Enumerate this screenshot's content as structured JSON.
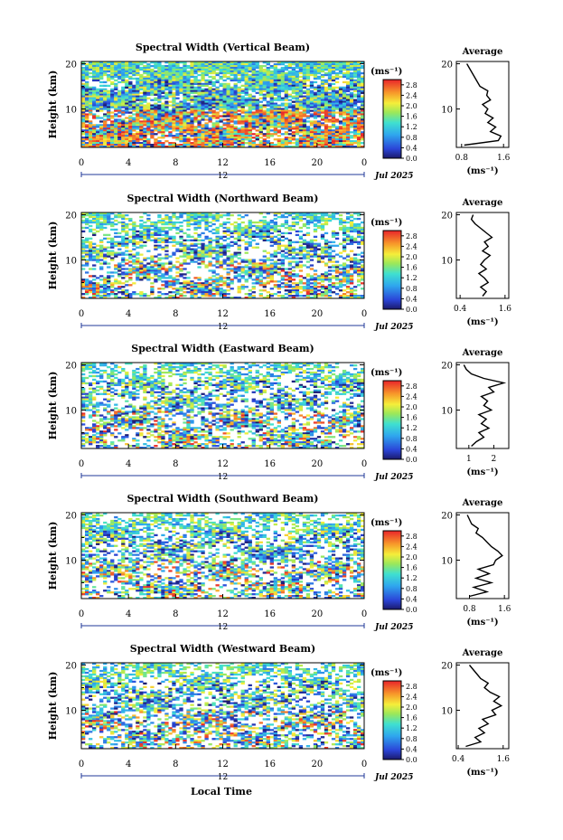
{
  "figure": {
    "xlabel": "Local Time",
    "date_label": "Jul 2025",
    "colorbar_unit": "(ms⁻¹)",
    "average_title": "Average",
    "average_unit": "(ms⁻¹)"
  },
  "chart_data": [
    {
      "type": "heatmap",
      "title": "Spectral Width (Vertical Beam)",
      "ylabel": "Height (km)",
      "xlim": [
        0,
        24
      ],
      "ylim": [
        1.5,
        20.5
      ],
      "x_ticks": [
        "0",
        "4",
        "8",
        "12",
        "16",
        "20",
        "0"
      ],
      "x_sub_label": "12",
      "y_ticks": [
        "20",
        "10"
      ],
      "colorbar": {
        "min": 0.0,
        "max": 3.0,
        "ticks": [
          "2.8",
          "2.4",
          "2.0",
          "1.6",
          "1.2",
          "0.8",
          "0.4",
          "0.0"
        ]
      },
      "profile": {
        "title": "Average",
        "xlabel": "(ms⁻¹)",
        "xlim": [
          0.7,
          1.7
        ],
        "x_ticks": [
          "0.8",
          "1.6"
        ],
        "y_ticks": [
          "20",
          "10"
        ],
        "height": [
          2,
          3,
          4,
          5,
          6,
          7,
          8,
          9,
          10,
          11,
          12,
          13,
          14,
          15,
          16,
          17,
          18,
          19,
          20
        ],
        "width": [
          0.85,
          1.5,
          1.55,
          1.35,
          1.45,
          1.3,
          1.4,
          1.25,
          1.3,
          1.2,
          1.35,
          1.28,
          1.3,
          1.15,
          1.1,
          1.05,
          1.0,
          0.95,
          0.9
        ]
      }
    },
    {
      "type": "heatmap",
      "title": "Spectral Width (Northward Beam)",
      "ylabel": "Height (km)",
      "xlim": [
        0,
        24
      ],
      "ylim": [
        1.5,
        20.5
      ],
      "x_ticks": [
        "0",
        "4",
        "8",
        "12",
        "16",
        "20",
        "0"
      ],
      "x_sub_label": "12",
      "y_ticks": [
        "20",
        "10"
      ],
      "colorbar": {
        "min": 0.0,
        "max": 3.0,
        "ticks": [
          "2.8",
          "2.4",
          "2.0",
          "1.6",
          "1.2",
          "0.8",
          "0.4",
          "0.0"
        ]
      },
      "profile": {
        "title": "Average",
        "xlabel": "(ms⁻¹)",
        "xlim": [
          0.3,
          1.7
        ],
        "x_ticks": [
          "0.4",
          "1.6"
        ],
        "y_ticks": [
          "20",
          "10"
        ],
        "height": [
          2,
          3,
          4,
          5,
          6,
          7,
          8,
          9,
          10,
          11,
          12,
          13,
          14,
          15,
          16,
          17,
          18,
          19,
          20
        ],
        "width": [
          1.0,
          1.1,
          0.95,
          1.15,
          1.05,
          0.9,
          1.1,
          0.95,
          1.05,
          1.2,
          1.0,
          1.15,
          1.05,
          1.25,
          1.1,
          0.95,
          0.8,
          0.7,
          0.75
        ]
      }
    },
    {
      "type": "heatmap",
      "title": "Spectral Width (Eastward Beam)",
      "ylabel": "Height (km)",
      "xlim": [
        0,
        24
      ],
      "ylim": [
        1.5,
        20.5
      ],
      "x_ticks": [
        "0",
        "4",
        "8",
        "12",
        "16",
        "20",
        "0"
      ],
      "x_sub_label": "12",
      "y_ticks": [
        "20",
        "10"
      ],
      "colorbar": {
        "min": 0.0,
        "max": 3.0,
        "ticks": [
          "2.8",
          "2.4",
          "2.0",
          "1.6",
          "1.2",
          "0.8",
          "0.4",
          "0.0"
        ]
      },
      "profile": {
        "title": "Average",
        "xlabel": "(ms⁻¹)",
        "xlim": [
          0.5,
          2.6
        ],
        "x_ticks": [
          "1",
          "2"
        ],
        "y_ticks": [
          "20",
          "10"
        ],
        "height": [
          2,
          3,
          4,
          5,
          6,
          7,
          8,
          9,
          10,
          11,
          12,
          13,
          14,
          15,
          16,
          17,
          18,
          19,
          20
        ],
        "width": [
          1.1,
          1.3,
          1.6,
          1.4,
          1.8,
          1.5,
          1.7,
          1.4,
          1.9,
          1.6,
          1.75,
          1.5,
          2.0,
          1.8,
          2.4,
          1.6,
          1.1,
          0.9,
          0.8
        ]
      }
    },
    {
      "type": "heatmap",
      "title": "Spectral Width (Southward Beam)",
      "ylabel": "Height (km)",
      "xlim": [
        0,
        24
      ],
      "ylim": [
        1.5,
        20.5
      ],
      "x_ticks": [
        "0",
        "4",
        "8",
        "12",
        "16",
        "20",
        "0"
      ],
      "x_sub_label": "12",
      "y_ticks": [
        "20",
        "10"
      ],
      "colorbar": {
        "min": 0.0,
        "max": 3.0,
        "ticks": [
          "2.8",
          "2.4",
          "2.0",
          "1.6",
          "1.2",
          "0.8",
          "0.4",
          "0.0"
        ]
      },
      "profile": {
        "title": "Average",
        "xlabel": "(ms⁻¹)",
        "xlim": [
          0.5,
          1.7
        ],
        "x_ticks": [
          "0.8",
          "1.6"
        ],
        "y_ticks": [
          "20",
          "10"
        ],
        "height": [
          2,
          3,
          4,
          5,
          6,
          7,
          8,
          9,
          10,
          11,
          12,
          13,
          14,
          15,
          16,
          17,
          18,
          19,
          20
        ],
        "width": [
          0.8,
          1.2,
          0.9,
          1.3,
          0.95,
          1.25,
          1.0,
          1.35,
          1.4,
          1.55,
          1.45,
          1.3,
          1.2,
          1.1,
          0.95,
          1.0,
          0.85,
          0.8,
          0.75
        ]
      }
    },
    {
      "type": "heatmap",
      "title": "Spectral Width (Westward Beam)",
      "ylabel": "Height (km)",
      "xlim": [
        0,
        24
      ],
      "ylim": [
        1.5,
        20.5
      ],
      "x_ticks": [
        "0",
        "4",
        "8",
        "12",
        "16",
        "20",
        "0"
      ],
      "x_sub_label": "12",
      "y_ticks": [
        "20",
        "10"
      ],
      "colorbar": {
        "min": 0.0,
        "max": 3.0,
        "ticks": [
          "2.8",
          "2.4",
          "2.0",
          "1.6",
          "1.2",
          "0.8",
          "0.4",
          "0.0"
        ]
      },
      "profile": {
        "title": "Average",
        "xlabel": "(ms⁻¹)",
        "xlim": [
          0.35,
          1.75
        ],
        "x_ticks": [
          "0.4",
          "1.6"
        ],
        "y_ticks": [
          "20",
          "10"
        ],
        "height": [
          2,
          3,
          4,
          5,
          6,
          7,
          8,
          9,
          10,
          11,
          12,
          13,
          14,
          15,
          16,
          17,
          18,
          19,
          20
        ],
        "width": [
          0.6,
          1.0,
          0.85,
          1.1,
          0.95,
          1.2,
          1.05,
          1.4,
          1.3,
          1.55,
          1.35,
          1.5,
          1.25,
          1.1,
          1.2,
          1.0,
          0.9,
          0.8,
          0.7
        ]
      }
    }
  ]
}
